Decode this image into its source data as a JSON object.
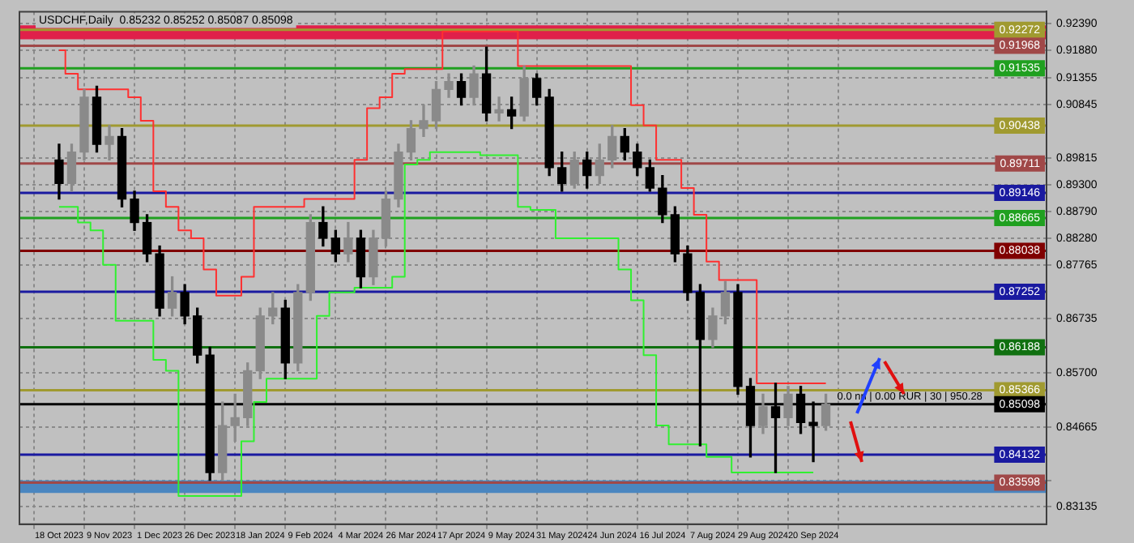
{
  "chart_data": {
    "type": "candlestick",
    "title": "USDCHF,Daily  0.85232 0.85252 0.85087 0.85098",
    "categories": [
      "18 Oct 2023",
      null,
      null,
      null,
      "9 Nov 2023",
      null,
      null,
      null,
      "1 Dec 2023",
      null,
      null,
      null,
      "26 Dec 2023",
      null,
      null,
      null,
      "18 Jan 2024",
      null,
      null,
      null,
      "9 Feb 2024",
      null,
      null,
      null,
      "4 Mar 2024",
      null,
      null,
      null,
      "26 Mar 2024",
      null,
      null,
      null,
      "17 Apr 2024",
      null,
      null,
      null,
      "9 May 2024",
      null,
      null,
      null,
      "31 May 2024",
      null,
      null,
      null,
      "24 Jun 2024",
      null,
      null,
      null,
      "16 Jul 2024",
      null,
      null,
      null,
      "7 Aug 2024",
      null,
      null,
      null,
      "29 Aug 2024",
      null,
      null,
      null,
      "20 Sep 2024",
      null
    ],
    "ohlc": [
      [
        0.8978,
        0.9008,
        0.8903,
        0.8933
      ],
      [
        0.8933,
        0.9008,
        0.8918,
        0.8993
      ],
      [
        0.8993,
        0.9113,
        0.8978,
        0.9098
      ],
      [
        0.9098,
        0.9119,
        0.8993,
        0.9008
      ],
      [
        0.9008,
        0.9044,
        0.8978,
        0.9023
      ],
      [
        0.9023,
        0.9038,
        0.8888,
        0.8903
      ],
      [
        0.8903,
        0.8918,
        0.8843,
        0.8858
      ],
      [
        0.8858,
        0.8873,
        0.8783,
        0.8798
      ],
      [
        0.8798,
        0.8813,
        0.8679,
        0.8694
      ],
      [
        0.8694,
        0.8754,
        0.8679,
        0.8724
      ],
      [
        0.8724,
        0.8739,
        0.8664,
        0.8679
      ],
      [
        0.8679,
        0.8694,
        0.8589,
        0.8604
      ],
      [
        0.8604,
        0.8619,
        0.8364,
        0.8379
      ],
      [
        0.8379,
        0.8514,
        0.8364,
        0.8469
      ],
      [
        0.8469,
        0.8529,
        0.8439,
        0.8484
      ],
      [
        0.8484,
        0.8589,
        0.8469,
        0.8574
      ],
      [
        0.8574,
        0.8694,
        0.8559,
        0.8679
      ],
      [
        0.8679,
        0.8724,
        0.8664,
        0.8694
      ],
      [
        0.8694,
        0.8709,
        0.8559,
        0.8589
      ],
      [
        0.8589,
        0.8739,
        0.8574,
        0.8724
      ],
      [
        0.8724,
        0.8873,
        0.8709,
        0.8858
      ],
      [
        0.8858,
        0.8888,
        0.8813,
        0.8828
      ],
      [
        0.8828,
        0.8843,
        0.8783,
        0.8798
      ],
      [
        0.8798,
        0.8858,
        0.8783,
        0.8828
      ],
      [
        0.8828,
        0.8843,
        0.8733,
        0.8754
      ],
      [
        0.8754,
        0.8843,
        0.8739,
        0.8828
      ],
      [
        0.8828,
        0.8918,
        0.8813,
        0.8903
      ],
      [
        0.8903,
        0.9008,
        0.8888,
        0.8993
      ],
      [
        0.8993,
        0.9053,
        0.8978,
        0.9038
      ],
      [
        0.9038,
        0.9083,
        0.9023,
        0.9053
      ],
      [
        0.9053,
        0.9128,
        0.9038,
        0.9113
      ],
      [
        0.9113,
        0.9143,
        0.9098,
        0.9128
      ],
      [
        0.9128,
        0.9143,
        0.9083,
        0.9098
      ],
      [
        0.9098,
        0.9158,
        0.9083,
        0.9143
      ],
      [
        0.9143,
        0.9194,
        0.9053,
        0.9068
      ],
      [
        0.9068,
        0.9098,
        0.9053,
        0.9074
      ],
      [
        0.9074,
        0.9098,
        0.9038,
        0.9062
      ],
      [
        0.9062,
        0.9158,
        0.9053,
        0.9134
      ],
      [
        0.9134,
        0.9143,
        0.9083,
        0.9098
      ],
      [
        0.9098,
        0.9113,
        0.8948,
        0.8963
      ],
      [
        0.8963,
        0.8993,
        0.8918,
        0.8933
      ],
      [
        0.8933,
        0.8993,
        0.8924,
        0.8978
      ],
      [
        0.8978,
        0.8993,
        0.8924,
        0.8948
      ],
      [
        0.8948,
        0.9008,
        0.8933,
        0.8978
      ],
      [
        0.8978,
        0.9044,
        0.8963,
        0.9023
      ],
      [
        0.9023,
        0.9038,
        0.8978,
        0.8993
      ],
      [
        0.8993,
        0.9008,
        0.8948,
        0.8963
      ],
      [
        0.8963,
        0.8978,
        0.8918,
        0.8924
      ],
      [
        0.8924,
        0.8948,
        0.8858,
        0.8873
      ],
      [
        0.8873,
        0.8888,
        0.8783,
        0.8798
      ],
      [
        0.8798,
        0.8813,
        0.8709,
        0.8724
      ],
      [
        0.8724,
        0.8739,
        0.843,
        0.8634
      ],
      [
        0.8634,
        0.8694,
        0.8619,
        0.8679
      ],
      [
        0.8679,
        0.8745,
        0.8664,
        0.8724
      ],
      [
        0.8724,
        0.8739,
        0.8529,
        0.8544
      ],
      [
        0.8544,
        0.8559,
        0.8409,
        0.8469
      ],
      [
        0.8469,
        0.8529,
        0.8454,
        0.8505
      ],
      [
        0.8505,
        0.855,
        0.8379,
        0.8484
      ],
      [
        0.8484,
        0.8544,
        0.8469,
        0.8529
      ],
      [
        0.8529,
        0.8544,
        0.8454,
        0.8475
      ],
      [
        0.8475,
        0.8514,
        0.84,
        0.8469
      ],
      [
        0.8469,
        0.8529,
        0.846,
        0.85098
      ]
    ],
    "series": [
      {
        "type": "step",
        "color": "#ff3030",
        "values": [
          0.9188,
          0.9143,
          0.9113,
          0.9113,
          0.9113,
          0.9113,
          0.9098,
          0.9053,
          0.8918,
          0.8888,
          0.8843,
          0.8828,
          0.8768,
          0.8718,
          0.8718,
          0.8754,
          0.8888,
          0.8888,
          0.8888,
          0.8888,
          0.8903,
          0.8903,
          0.8903,
          0.8903,
          0.8978,
          0.9077,
          0.9098,
          0.9143,
          0.9152,
          0.9152,
          0.9152,
          0.9224,
          0.9224,
          0.9224,
          0.9224,
          0.9224,
          0.9224,
          0.9158,
          0.9158,
          0.9158,
          0.9158,
          0.9158,
          0.9158,
          0.9158,
          0.9158,
          0.9158,
          0.9083,
          0.9044,
          0.8978,
          0.8978,
          0.8924,
          0.8873,
          0.8783,
          0.8748,
          0.8748,
          0.8748,
          0.855,
          0.855,
          0.855,
          0.855,
          0.855,
          0.855
        ]
      },
      {
        "type": "step",
        "color": "#30f030",
        "values": [
          0.8888,
          0.8888,
          0.8858,
          0.8843,
          0.8777,
          0.867,
          0.867,
          0.867,
          0.8595,
          0.8574,
          0.8334,
          0.8334,
          0.8334,
          0.8334,
          0.8334,
          0.8439,
          0.8514,
          0.8559,
          0.8559,
          0.8559,
          0.8559,
          0.8679,
          0.8724,
          0.8724,
          0.8733,
          0.8733,
          0.8733,
          0.8754,
          0.8969,
          0.8978,
          0.8993,
          0.8993,
          0.8993,
          0.8993,
          0.8987,
          0.8987,
          0.8987,
          0.8888,
          0.8882,
          0.8882,
          0.8828,
          0.8828,
          0.8828,
          0.8828,
          0.8828,
          0.8768,
          0.8709,
          0.8604,
          0.8469,
          0.8433,
          0.8433,
          0.8433,
          0.8409,
          0.8409,
          0.8379,
          0.8379,
          0.8379,
          0.8379,
          0.8379,
          0.8379,
          0.8379,
          null
        ]
      }
    ],
    "ylim": [
      0.828,
      0.9262
    ],
    "yticks": [
      0.83135,
      {
        "value": 0.8364,
        "label": null
      },
      0.84665,
      {
        "value": 0.857,
        "label": "0.85700"
      },
      0.86735,
      0.87765,
      {
        "value": 0.8828,
        "label": "0.88280"
      },
      {
        "value": 0.8879,
        "label": "0.88790"
      },
      {
        "value": 0.893,
        "label": "0.89300"
      },
      0.89815,
      0.90845,
      0.91355,
      {
        "value": 0.9188,
        "label": "0.91880"
      },
      {
        "value": 0.9239,
        "label": "0.92390"
      }
    ],
    "grid": true,
    "ref_lines": [
      {
        "axis": "y",
        "value": 0.92272,
        "label": "0.92272",
        "color": "#a09a30"
      },
      {
        "axis": "y",
        "value": 0.91968,
        "label": "0.91968",
        "color": "#a04848"
      },
      {
        "axis": "y",
        "value": 0.91535,
        "label": "0.91535",
        "color": "#20a020"
      },
      {
        "axis": "y",
        "value": 0.90438,
        "label": "0.90438",
        "color": "#a09a30"
      },
      {
        "axis": "y",
        "value": 0.89711,
        "label": "0.89711",
        "color": "#a04848"
      },
      {
        "axis": "y",
        "value": 0.89146,
        "label": "0.89146",
        "color": "#1a1aa0"
      },
      {
        "axis": "y",
        "value": 0.88665,
        "label": "0.88665",
        "color": "#20a020"
      },
      {
        "axis": "y",
        "value": 0.88038,
        "label": "0.88038",
        "color": "#800000"
      },
      {
        "axis": "y",
        "value": 0.87252,
        "label": "0.87252",
        "color": "#1a1aa0"
      },
      {
        "axis": "y",
        "value": 0.86188,
        "label": "0.86188",
        "color": "#107010"
      },
      {
        "axis": "y",
        "value": 0.85366,
        "label": "0.85366",
        "color": "#a09a30"
      },
      {
        "axis": "y",
        "value": 0.85098,
        "label": "0.85098",
        "color": "#000000"
      },
      {
        "axis": "y",
        "value": 0.84132,
        "label": "0.84132",
        "color": "#1a1aa0"
      },
      {
        "axis": "y",
        "value": 0.83598,
        "label": "0.83598",
        "color": "#a04848"
      }
    ],
    "bands": [
      {
        "axis": "y",
        "from": 0.9209,
        "to": 0.9236,
        "color": "#e0204a"
      },
      {
        "axis": "y",
        "from": 0.834,
        "to": 0.8364,
        "color": "#4a86c0"
      }
    ],
    "annotations": [
      "0.0 nn | 0.00 RUR | 30 | 950.28"
    ]
  }
}
